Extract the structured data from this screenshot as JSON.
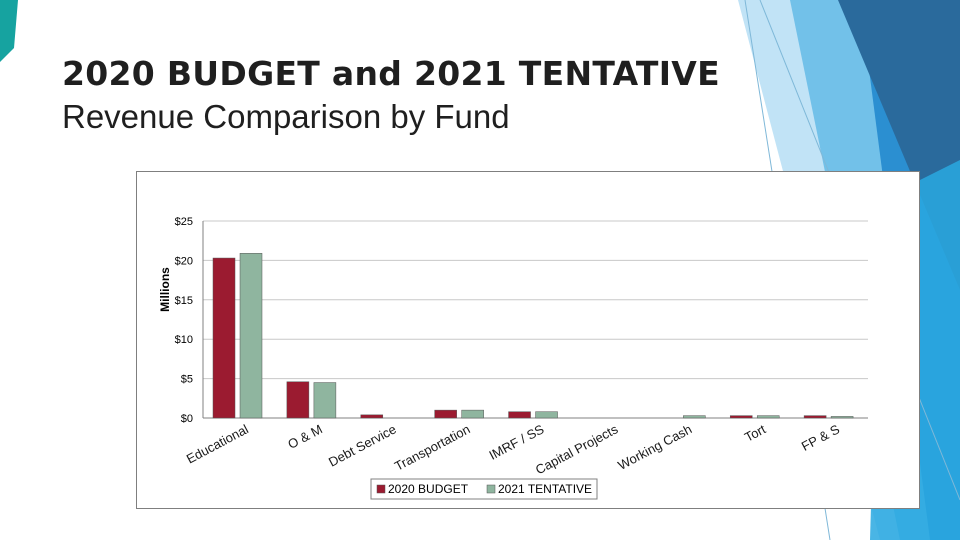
{
  "slide": {
    "title_line1": "2020 BUDGET and 2021 TENTATIVE",
    "title_line2": "Revenue Comparison by Fund"
  },
  "colors": {
    "series_2020": "#9b1b30",
    "series_2021": "#8fb59f",
    "deco_dark": "#2a6a9c",
    "deco_mid": "#2b8fd1",
    "deco_light": "#69bde8",
    "deco_pale": "#b6def5",
    "deco_arrow": "#16a3a0"
  },
  "chart_data": {
    "type": "bar",
    "title": "",
    "ylabel": "Millions",
    "xlabel": "",
    "ylim": [
      0,
      25
    ],
    "yticks": [
      0,
      5,
      10,
      15,
      20,
      25
    ],
    "ytick_labels": [
      "$0",
      "$5",
      "$10",
      "$15",
      "$20",
      "$25"
    ],
    "grid": true,
    "legend_position": "bottom",
    "categories": [
      "Educational",
      "O & M",
      "Debt Service",
      "Transportation",
      "IMRF / SS",
      "Capital Projects",
      "Working Cash",
      "Tort",
      "FP & S"
    ],
    "series": [
      {
        "name": "2020 BUDGET",
        "values": [
          20.3,
          4.6,
          0.4,
          1.0,
          0.8,
          0.0,
          0.0,
          0.3,
          0.3
        ]
      },
      {
        "name": "2021 TENTATIVE",
        "values": [
          20.9,
          4.5,
          0.0,
          1.0,
          0.8,
          0.0,
          0.3,
          0.3,
          0.2
        ]
      }
    ]
  }
}
